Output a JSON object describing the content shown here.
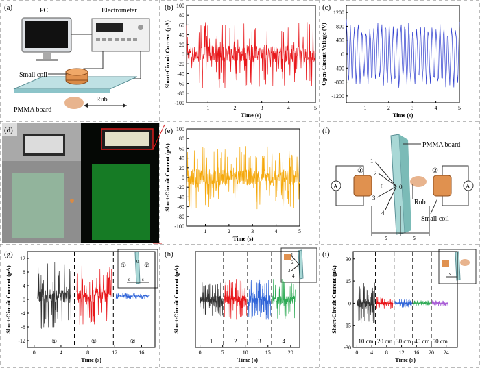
{
  "panels": {
    "a": {
      "label": "(a)",
      "pc": "PC",
      "electrometer": "Electrometer",
      "coil": "Small coil",
      "board": "PMMA board",
      "rub": "Rub"
    },
    "d": {
      "label": "(d)"
    },
    "f": {
      "label": "(f)",
      "board": "PMMA board",
      "coil": "Small coil",
      "rub": "Rub",
      "ammeter": "A",
      "pos": [
        "1",
        "2",
        "3",
        "4"
      ],
      "origin": "0",
      "theta": "θ",
      "circle1": "①",
      "circle2": "②",
      "s": "s"
    }
  },
  "chart_data": [
    {
      "id": "b",
      "label": "(b)",
      "type": "line",
      "ylabel": "Short-Circuit Current (μA)",
      "xlabel": "Time (s)",
      "xlim": [
        0.2,
        5
      ],
      "ylim": [
        -100,
        100
      ],
      "xticks": [
        1,
        2,
        3,
        4,
        5
      ],
      "yticks": [
        -100,
        -80,
        -60,
        -40,
        -20,
        0,
        20,
        40,
        60,
        80,
        100
      ],
      "color": "#e8171b",
      "segments": [
        {
          "n": 420,
          "amp": 70,
          "base": 0
        }
      ]
    },
    {
      "id": "c",
      "label": "(c)",
      "type": "line",
      "ylabel": "Open-Circuit Voltage (V)",
      "xlabel": "Time (s)",
      "xlim": [
        0.2,
        5
      ],
      "ylim": [
        -1400,
        1400
      ],
      "xticks": [
        1,
        2,
        3,
        4,
        5
      ],
      "yticks": [
        -1200,
        -800,
        -400,
        0,
        400,
        800,
        1200
      ],
      "color": "#2f3ecf",
      "segments": [
        {
          "n": 140,
          "amp": 1050,
          "base": 0
        }
      ]
    },
    {
      "id": "e",
      "label": "(e)",
      "type": "line",
      "ylabel": "Short-Circuit Current (μA)",
      "xlabel": "Time (s)",
      "xlim": [
        0.2,
        5
      ],
      "ylim": [
        -100,
        100
      ],
      "xticks": [
        1,
        2,
        3,
        4,
        5
      ],
      "yticks": [
        -100,
        -80,
        -60,
        -40,
        -20,
        0,
        20,
        40,
        60,
        80,
        100
      ],
      "color": "#f5a90d",
      "segments": [
        {
          "n": 420,
          "amp": 65,
          "base": 0
        }
      ]
    },
    {
      "id": "g",
      "label": "(g)",
      "type": "line",
      "ylabel": "Short-Circuit Current (μA)",
      "xlabel": "Time (s)",
      "xlim": [
        -1,
        18
      ],
      "ylim": [
        -14,
        14
      ],
      "xticks": [
        0,
        4,
        8,
        12,
        16
      ],
      "yticks": [
        -12,
        -8,
        -4,
        0,
        4,
        8,
        12
      ],
      "dividers": [
        6,
        11.8
      ],
      "segment_labels": [
        "①",
        "①",
        "②"
      ],
      "segments": [
        {
          "x0": 0.5,
          "x1": 5.5,
          "color": "#333333",
          "amp": 10,
          "n": 150,
          "base": 1
        },
        {
          "x0": 6.3,
          "x1": 11.5,
          "color": "#e8171b",
          "amp": 9,
          "n": 150,
          "base": 1
        },
        {
          "x0": 12.2,
          "x1": 17.2,
          "color": "#2f64d8",
          "amp": 1,
          "n": 150,
          "base": 1
        }
      ]
    },
    {
      "id": "h",
      "label": "(h)",
      "type": "line",
      "ylabel": "Short-Circuit Current (μA)",
      "xlabel": "Time (s)",
      "xlim": [
        -1,
        22
      ],
      "ylim": [
        -14,
        14
      ],
      "xticks": [
        0,
        5,
        10,
        15,
        20
      ],
      "yticks": [],
      "dividers": [
        5.2,
        10.5,
        15.8
      ],
      "segment_labels": [
        "1",
        "2",
        "3",
        "4"
      ],
      "segments": [
        {
          "x0": 0,
          "x1": 5,
          "color": "#333333",
          "amp": 5,
          "n": 150,
          "base": 0
        },
        {
          "x0": 5.4,
          "x1": 10.3,
          "color": "#e8171b",
          "amp": 6,
          "n": 150,
          "base": 0
        },
        {
          "x0": 10.7,
          "x1": 15.6,
          "color": "#2f64d8",
          "amp": 6,
          "n": 150,
          "base": 0
        },
        {
          "x0": 16,
          "x1": 21,
          "color": "#2eaa55",
          "amp": 6,
          "n": 150,
          "base": 0
        }
      ]
    },
    {
      "id": "i",
      "label": "(i)",
      "type": "line",
      "ylabel": "Short-Circuit Current (μA)",
      "xlabel": "Time (s)",
      "xlim": [
        -1,
        27
      ],
      "ylim": [
        -30,
        35
      ],
      "xticks": [
        0,
        4,
        8,
        12,
        16,
        20,
        24
      ],
      "yticks": [
        -30,
        -15,
        0,
        15,
        30
      ],
      "dividers": [
        5,
        10,
        15,
        20
      ],
      "segment_labels": [
        "10 cm",
        "20 cm",
        "30 cm",
        "40 cm",
        "50 cm"
      ],
      "segments": [
        {
          "x0": 0,
          "x1": 4.8,
          "color": "#333333",
          "amp": 14,
          "n": 150,
          "base": 0
        },
        {
          "x0": 5.2,
          "x1": 9.8,
          "color": "#e8171b",
          "amp": 4,
          "n": 150,
          "base": 0
        },
        {
          "x0": 10.2,
          "x1": 14.8,
          "color": "#2f64d8",
          "amp": 3,
          "n": 150,
          "base": 0
        },
        {
          "x0": 15.2,
          "x1": 19.8,
          "color": "#2eaa55",
          "amp": 2,
          "n": 150,
          "base": 0
        },
        {
          "x0": 20.2,
          "x1": 24.5,
          "color": "#a95ed6",
          "amp": 2,
          "n": 150,
          "base": 0
        }
      ]
    }
  ]
}
